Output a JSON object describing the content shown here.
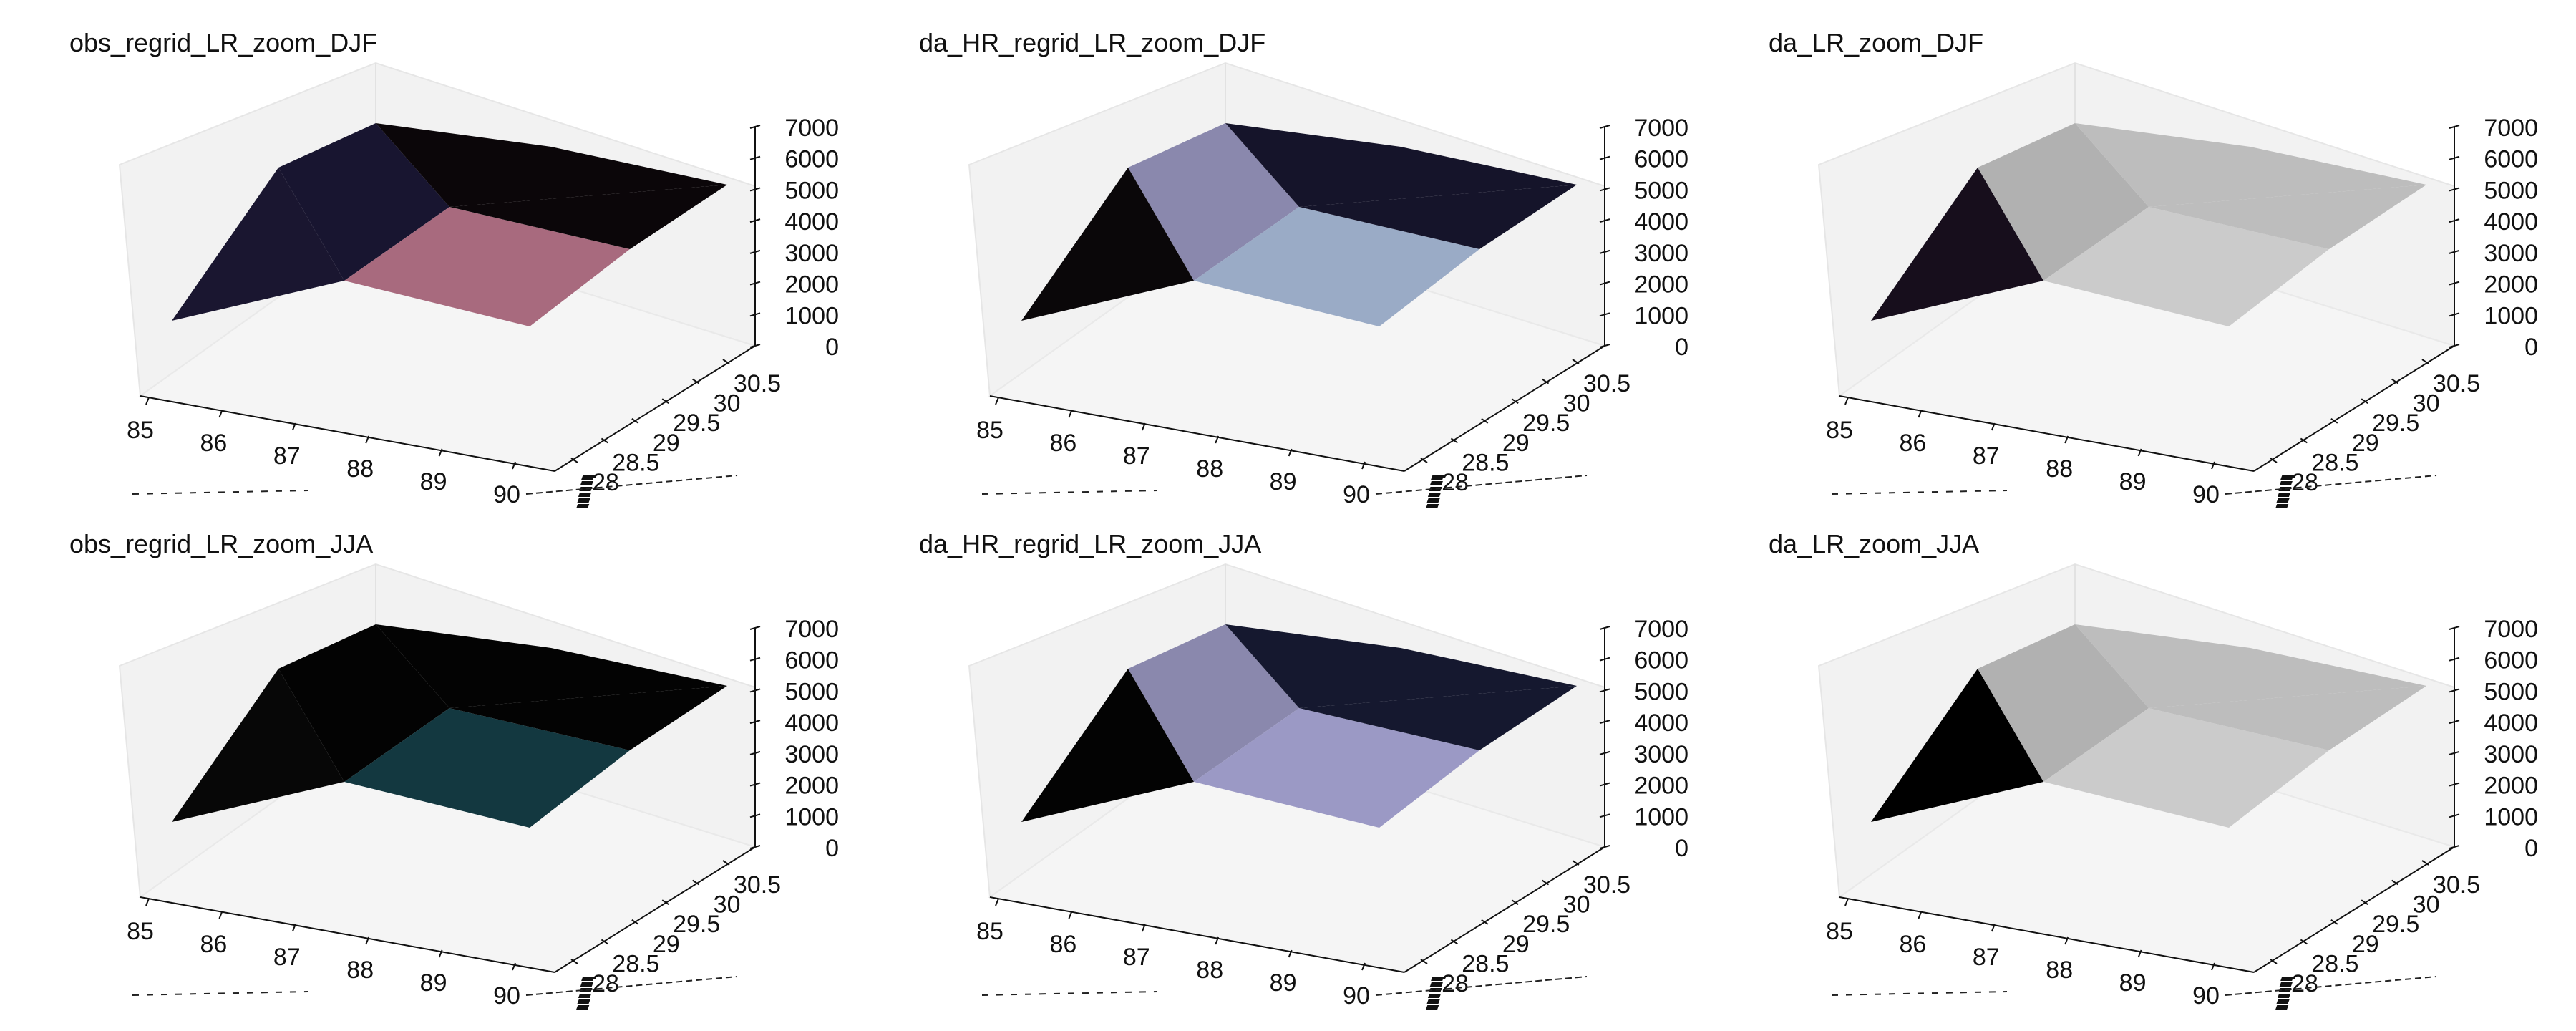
{
  "figure": {
    "background": "#ffffff",
    "wall_color": "#f2f2f2",
    "gridlines": false
  },
  "chart_data": [
    {
      "type": "surface3d",
      "title": "obs_regrid_LR_zoom_DJF",
      "x": {
        "ticks": [
          "85",
          "86",
          "87",
          "88",
          "89",
          "90"
        ],
        "range": [
          85,
          90
        ]
      },
      "y": {
        "ticks": [
          "28",
          "28.5",
          "29",
          "29.5",
          "30",
          "30.5"
        ],
        "range": [
          28,
          30.5
        ]
      },
      "z": {
        "ticks": [
          "0",
          "1000",
          "2000",
          "3000",
          "4000",
          "5000",
          "6000",
          "7000"
        ],
        "range": [
          0,
          7000
        ]
      },
      "facet_colors": {
        "back_left": "#181530",
        "back_right": "#0b0609",
        "front_left": "#1a1630",
        "front_right": "#a86a7e"
      }
    },
    {
      "type": "surface3d",
      "title": "da_HR_regrid_LR_zoom_DJF",
      "x": {
        "ticks": [
          "85",
          "86",
          "87",
          "88",
          "89",
          "90"
        ],
        "range": [
          85,
          90
        ]
      },
      "y": {
        "ticks": [
          "28",
          "28.5",
          "29",
          "29.5",
          "30",
          "30.5"
        ],
        "range": [
          28,
          30.5
        ]
      },
      "z": {
        "ticks": [
          "0",
          "1000",
          "2000",
          "3000",
          "4000",
          "5000",
          "6000",
          "7000"
        ],
        "range": [
          0,
          7000
        ]
      },
      "facet_colors": {
        "back_left": "#8a88ad",
        "back_right": "#15142a",
        "front_left": "#0a0709",
        "front_right": "#9aabc6"
      }
    },
    {
      "type": "surface3d",
      "title": "da_LR_zoom_DJF",
      "x": {
        "ticks": [
          "85",
          "86",
          "87",
          "88",
          "89",
          "90"
        ],
        "range": [
          85,
          90
        ]
      },
      "y": {
        "ticks": [
          "28",
          "28.5",
          "29",
          "29.5",
          "30",
          "30.5"
        ],
        "range": [
          28,
          30.5
        ]
      },
      "z": {
        "ticks": [
          "0",
          "1000",
          "2000",
          "3000",
          "4000",
          "5000",
          "6000",
          "7000"
        ],
        "range": [
          0,
          7000
        ]
      },
      "facet_colors": {
        "back_left": "#b1b1b1",
        "back_right": "#bdbdbd",
        "front_left": "#170e1c",
        "front_right": "#cbcbcb"
      }
    },
    {
      "type": "surface3d",
      "title": "obs_regrid_LR_zoom_JJA",
      "x": {
        "ticks": [
          "85",
          "86",
          "87",
          "88",
          "89",
          "90"
        ],
        "range": [
          85,
          90
        ]
      },
      "y": {
        "ticks": [
          "28",
          "28.5",
          "29",
          "29.5",
          "30",
          "30.5"
        ],
        "range": [
          28,
          30.5
        ]
      },
      "z": {
        "ticks": [
          "0",
          "1000",
          "2000",
          "3000",
          "4000",
          "5000",
          "6000",
          "7000"
        ],
        "range": [
          0,
          7000
        ]
      },
      "facet_colors": {
        "back_left": "#030303",
        "back_right": "#030303",
        "front_left": "#070707",
        "front_right": "#133840"
      }
    },
    {
      "type": "surface3d",
      "title": "da_HR_regrid_LR_zoom_JJA",
      "x": {
        "ticks": [
          "85",
          "86",
          "87",
          "88",
          "89",
          "90"
        ],
        "range": [
          85,
          90
        ]
      },
      "y": {
        "ticks": [
          "28",
          "28.5",
          "29",
          "29.5",
          "30",
          "30.5"
        ],
        "range": [
          28,
          30.5
        ]
      },
      "z": {
        "ticks": [
          "0",
          "1000",
          "2000",
          "3000",
          "4000",
          "5000",
          "6000",
          "7000"
        ],
        "range": [
          0,
          7000
        ]
      },
      "facet_colors": {
        "back_left": "#8a88ad",
        "back_right": "#15182f",
        "front_left": "#030303",
        "front_right": "#9b99c5"
      }
    },
    {
      "type": "surface3d",
      "title": "da_LR_zoom_JJA",
      "x": {
        "ticks": [
          "85",
          "86",
          "87",
          "88",
          "89",
          "90"
        ],
        "range": [
          85,
          90
        ]
      },
      "y": {
        "ticks": [
          "28",
          "28.5",
          "29",
          "29.5",
          "30",
          "30.5"
        ],
        "range": [
          28,
          30.5
        ]
      },
      "z": {
        "ticks": [
          "0",
          "1000",
          "2000",
          "3000",
          "4000",
          "5000",
          "6000",
          "7000"
        ],
        "range": [
          0,
          7000
        ]
      },
      "facet_colors": {
        "back_left": "#b1b1b1",
        "back_right": "#bdbdbd",
        "front_left": "#000000",
        "front_right": "#cbcbcb"
      }
    }
  ]
}
